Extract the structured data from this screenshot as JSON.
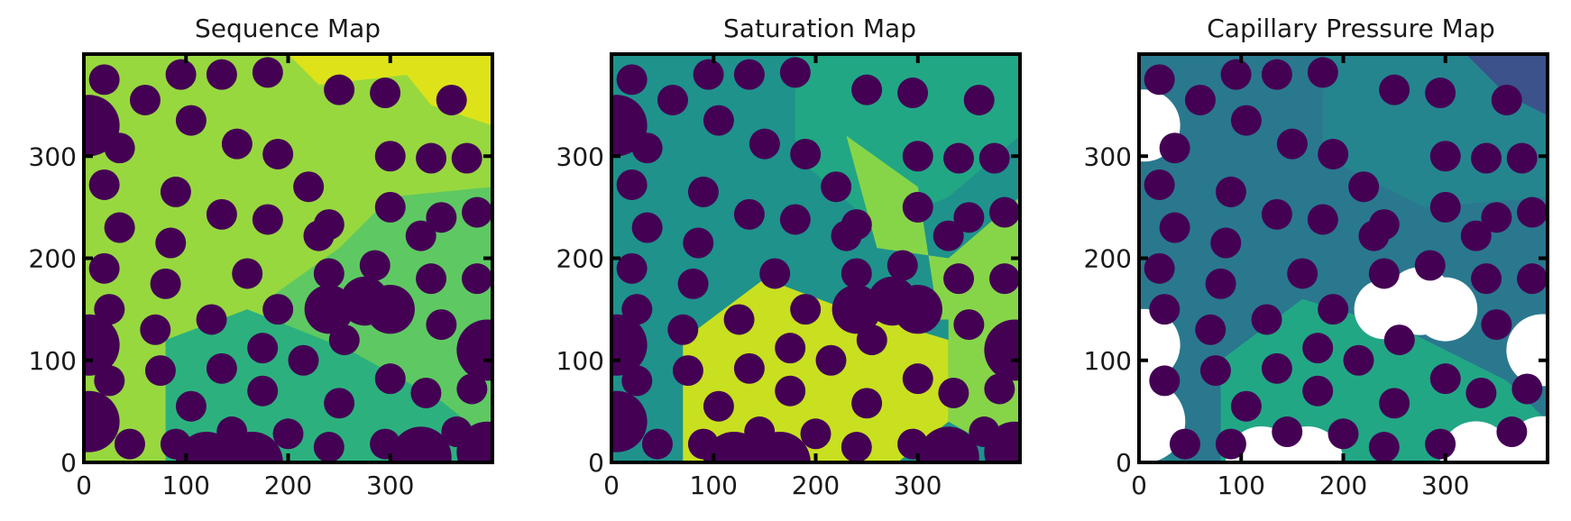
{
  "figure": {
    "colors": {
      "grain": "#440154",
      "sequence_early": "#97d83f",
      "sequence_mid": "#5ec962",
      "sequence_late": "#2cb17e",
      "sequence_latest": "#dde318",
      "saturation_low": "#1f928c",
      "saturation_mid": "#22a785",
      "saturation_high": "#86d549",
      "saturation_full": "#c8e020",
      "pc_low": "#2a788e",
      "pc_mid": "#25858e",
      "pc_high": "#22a785",
      "pc_top": "#3b528b",
      "unfilled": "#ffffff"
    }
  },
  "chart_data": [
    {
      "type": "heatmap",
      "title": "Sequence Map",
      "xlabel": "",
      "ylabel": "",
      "xlim": [
        0,
        400
      ],
      "ylim": [
        0,
        400
      ],
      "xticks": [
        0,
        100,
        200,
        300
      ],
      "yticks": [
        0,
        100,
        200,
        300
      ],
      "colormap": "viridis",
      "grid": false
    },
    {
      "type": "heatmap",
      "title": "Saturation Map",
      "xlabel": "",
      "ylabel": "",
      "xlim": [
        0,
        400
      ],
      "ylim": [
        0,
        400
      ],
      "xticks": [
        0,
        100,
        200,
        300
      ],
      "yticks": [
        0,
        100,
        200,
        300
      ],
      "colormap": "viridis",
      "grid": false
    },
    {
      "type": "heatmap",
      "title": "Capillary Pressure Map",
      "xlabel": "",
      "ylabel": "",
      "xlim": [
        0,
        400
      ],
      "ylim": [
        0,
        400
      ],
      "xticks": [
        0,
        100,
        200,
        300
      ],
      "yticks": [
        0,
        100,
        200,
        300
      ],
      "colormap": "viridis",
      "grid": false
    }
  ],
  "grains": [
    [
      20,
      375
    ],
    [
      60,
      355
    ],
    [
      95,
      380
    ],
    [
      135,
      380
    ],
    [
      180,
      382
    ],
    [
      250,
      365
    ],
    [
      295,
      362
    ],
    [
      360,
      355
    ],
    [
      105,
      335
    ],
    [
      150,
      312
    ],
    [
      190,
      302
    ],
    [
      300,
      300
    ],
    [
      340,
      298
    ],
    [
      375,
      298
    ],
    [
      20,
      272
    ],
    [
      35,
      308
    ],
    [
      90,
      265
    ],
    [
      220,
      270
    ],
    [
      240,
      233
    ],
    [
      300,
      250
    ],
    [
      350,
      240
    ],
    [
      385,
      245
    ],
    [
      35,
      230
    ],
    [
      85,
      215
    ],
    [
      135,
      243
    ],
    [
      180,
      238
    ],
    [
      230,
      222
    ],
    [
      330,
      222
    ],
    [
      20,
      190
    ],
    [
      80,
      175
    ],
    [
      160,
      185
    ],
    [
      240,
      185
    ],
    [
      285,
      193
    ],
    [
      340,
      180
    ],
    [
      385,
      180
    ],
    [
      25,
      150
    ],
    [
      70,
      130
    ],
    [
      125,
      140
    ],
    [
      190,
      150
    ],
    [
      255,
      120
    ],
    [
      350,
      135
    ],
    [
      25,
      80
    ],
    [
      75,
      90
    ],
    [
      135,
      92
    ],
    [
      175,
      112
    ],
    [
      215,
      100
    ],
    [
      300,
      82
    ],
    [
      335,
      68
    ],
    [
      380,
      72
    ],
    [
      105,
      55
    ],
    [
      175,
      70
    ],
    [
      250,
      58
    ],
    [
      45,
      18
    ],
    [
      90,
      18
    ],
    [
      145,
      30
    ],
    [
      200,
      28
    ],
    [
      240,
      15
    ],
    [
      295,
      18
    ],
    [
      365,
      30
    ]
  ],
  "big_grains": [
    [
      5,
      330
    ],
    [
      5,
      115
    ],
    [
      5,
      40
    ],
    [
      395,
      110
    ],
    [
      395,
      10
    ],
    [
      330,
      5
    ],
    [
      120,
      0
    ],
    [
      165,
      0
    ]
  ],
  "blob": [
    [
      240,
      150
    ],
    [
      275,
      158
    ],
    [
      300,
      150
    ]
  ]
}
